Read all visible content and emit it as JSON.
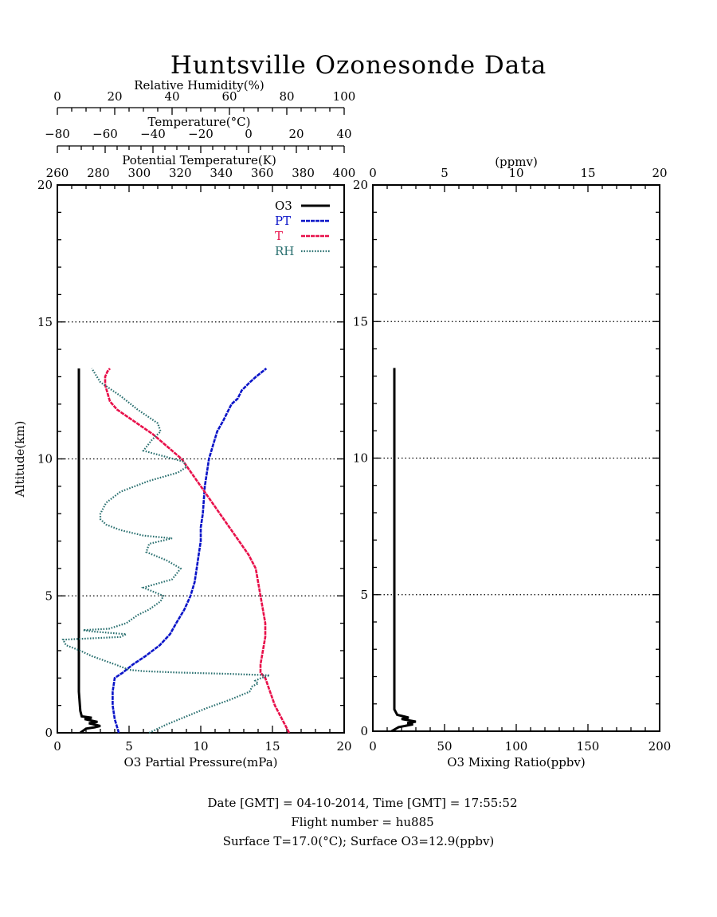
{
  "title": "Huntsville Ozonesonde Data",
  "footer": {
    "line1": "Date [GMT] = 04-10-2014,  Time [GMT] = 17:55:52",
    "line2": "Flight number = hu885",
    "line3": "Surface T=17.0(°C); Surface O3=12.9(ppbv)"
  },
  "colors": {
    "o3": "#000000",
    "pt": "#0a14c8",
    "t": "#e8104a",
    "rh": "#2a7070"
  },
  "chart_data": [
    {
      "type": "line",
      "panel": "left",
      "ylabel": "Altitude(km)",
      "ylim": [
        0,
        20
      ],
      "yticks": [
        0,
        5,
        10,
        15,
        20
      ],
      "grid_y": [
        5,
        10,
        15
      ],
      "grid": "dotted horizontal at 5, 10, 15 km",
      "legend_position": "top-right",
      "axes": {
        "o3_partial_pressure": {
          "label": "O3 Partial Pressure(mPa)",
          "range": [
            0,
            20
          ],
          "ticks": [
            0,
            5,
            10,
            15,
            20
          ],
          "position": "bottom"
        },
        "relative_humidity": {
          "label": "Relative Humidity(%)",
          "range": [
            0,
            100
          ],
          "ticks": [
            0,
            20,
            40,
            60,
            80,
            100
          ],
          "position": "top-1"
        },
        "temperature": {
          "label": "Temperature(°C)",
          "range": [
            -80,
            40
          ],
          "ticks": [
            -80,
            -60,
            -40,
            -20,
            0,
            20,
            40
          ],
          "position": "top-2"
        },
        "potential_temperature": {
          "label": "Potential Temperature(K)",
          "range": [
            260,
            400
          ],
          "ticks": [
            260,
            280,
            300,
            320,
            340,
            360,
            380,
            400
          ],
          "position": "top-3"
        }
      },
      "series": [
        {
          "name": "O3",
          "axis": "o3_partial_pressure",
          "x": [
            1.6,
            2.0,
            2.6,
            3.0,
            2.2,
            2.8,
            1.9,
            2.4,
            1.7,
            1.6,
            1.5,
            1.5,
            1.5,
            1.5,
            1.5,
            1.5,
            1.5
          ],
          "y": [
            0.0,
            0.15,
            0.2,
            0.25,
            0.35,
            0.4,
            0.5,
            0.55,
            0.6,
            0.8,
            1.5,
            3.0,
            5.0,
            8.0,
            10.0,
            12.0,
            13.3
          ]
        },
        {
          "name": "PT",
          "axis": "potential_temperature",
          "x": [
            290,
            288,
            287,
            287,
            288,
            292,
            297,
            303,
            310,
            315,
            318,
            322,
            325,
            327,
            328,
            329,
            330,
            330,
            331,
            332,
            334,
            336,
            338,
            341,
            343,
            345,
            348,
            350,
            354,
            357,
            362
          ],
          "y": [
            0.0,
            0.5,
            1.0,
            1.5,
            2.0,
            2.2,
            2.5,
            2.8,
            3.2,
            3.6,
            4.0,
            4.5,
            5.0,
            5.5,
            6.0,
            6.5,
            7.0,
            7.5,
            8.0,
            9.0,
            10.0,
            10.5,
            11.0,
            11.4,
            11.7,
            12.0,
            12.2,
            12.5,
            12.8,
            13.0,
            13.3
          ]
        },
        {
          "name": "T",
          "axis": "temperature",
          "x": [
            17,
            14,
            11,
            9,
            7,
            5,
            5,
            6,
            7,
            7,
            6,
            5,
            4,
            3,
            0,
            -4,
            -8,
            -12,
            -16,
            -20,
            -24,
            -28,
            -32,
            -36,
            -40,
            -45,
            -50,
            -55,
            -58,
            -59,
            -60,
            -60,
            -59,
            -58
          ],
          "y": [
            0.0,
            0.5,
            1.0,
            1.5,
            2.0,
            2.2,
            2.5,
            3.0,
            3.5,
            4.0,
            4.5,
            5.0,
            5.5,
            6.0,
            6.5,
            7.0,
            7.5,
            8.0,
            8.5,
            9.0,
            9.5,
            10.0,
            10.3,
            10.6,
            10.9,
            11.2,
            11.5,
            11.8,
            12.1,
            12.4,
            12.7,
            13.0,
            13.2,
            13.3
          ]
        },
        {
          "name": "RH",
          "axis": "relative_humidity",
          "x": [
            32,
            38,
            45,
            52,
            60,
            67,
            68,
            70,
            69,
            71,
            74,
            60,
            42,
            30,
            25,
            20,
            12,
            8,
            3,
            2,
            22,
            24,
            12,
            9,
            18,
            24,
            28,
            32,
            36,
            37,
            30,
            40,
            43,
            38,
            31,
            32,
            40,
            30,
            22,
            17,
            15,
            15,
            17,
            22,
            32,
            42,
            45,
            44,
            37,
            30,
            33,
            36,
            35,
            28,
            22,
            15,
            12
          ],
          "y": [
            0.0,
            0.3,
            0.6,
            0.9,
            1.2,
            1.5,
            1.7,
            1.8,
            1.9,
            2.0,
            2.1,
            2.15,
            2.2,
            2.25,
            2.3,
            2.5,
            2.8,
            3.0,
            3.2,
            3.4,
            3.5,
            3.6,
            3.7,
            3.75,
            3.8,
            4.0,
            4.3,
            4.5,
            4.8,
            5.0,
            5.3,
            5.6,
            6.0,
            6.3,
            6.6,
            6.9,
            7.1,
            7.2,
            7.4,
            7.6,
            7.8,
            8.0,
            8.4,
            8.8,
            9.2,
            9.5,
            9.7,
            9.9,
            10.1,
            10.3,
            10.7,
            11.0,
            11.3,
            11.8,
            12.3,
            12.8,
            13.3
          ]
        }
      ]
    },
    {
      "type": "line",
      "panel": "right",
      "xlabel": "O3 Mixing Ratio(ppbv)",
      "xlim": [
        0,
        200
      ],
      "xticks": [
        0,
        50,
        100,
        150,
        200
      ],
      "top_axis": {
        "label": "(ppmv)",
        "range": [
          0,
          20
        ],
        "ticks": [
          0,
          5,
          10,
          15,
          20
        ]
      },
      "ylim": [
        0,
        20
      ],
      "yticks": [
        0,
        5,
        10,
        15,
        20
      ],
      "grid_y": [
        5,
        10,
        15
      ],
      "series": [
        {
          "name": "O3 Mixing Ratio",
          "x": [
            13,
            18,
            28,
            24,
            30,
            20,
            25,
            17,
            15,
            15,
            15,
            15,
            15,
            15,
            15,
            15
          ],
          "y": [
            0.0,
            0.15,
            0.25,
            0.3,
            0.35,
            0.45,
            0.5,
            0.6,
            0.8,
            1.5,
            3.0,
            5.0,
            8.0,
            10.0,
            12.0,
            13.3
          ]
        }
      ]
    }
  ]
}
